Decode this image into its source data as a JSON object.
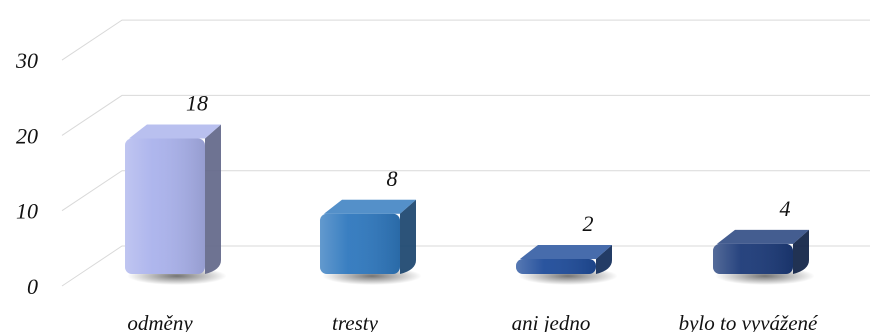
{
  "chart_data": {
    "type": "bar",
    "title": "",
    "xlabel": "",
    "ylabel": "",
    "categories": [
      "odměny",
      "tresty",
      "ani jedno",
      "bylo to vyvážené"
    ],
    "values": [
      18,
      8,
      2,
      4
    ],
    "data_labels": [
      "18",
      "8",
      "2",
      "4"
    ],
    "yticks": [
      "0",
      "10",
      "20",
      "30"
    ],
    "ylim": [
      0,
      35
    ],
    "grid": true,
    "legend": "none",
    "style": "3d-column",
    "colors": [
      "#aab2ec",
      "#2f78be",
      "#1f4c9a",
      "#1c3a78"
    ]
  }
}
